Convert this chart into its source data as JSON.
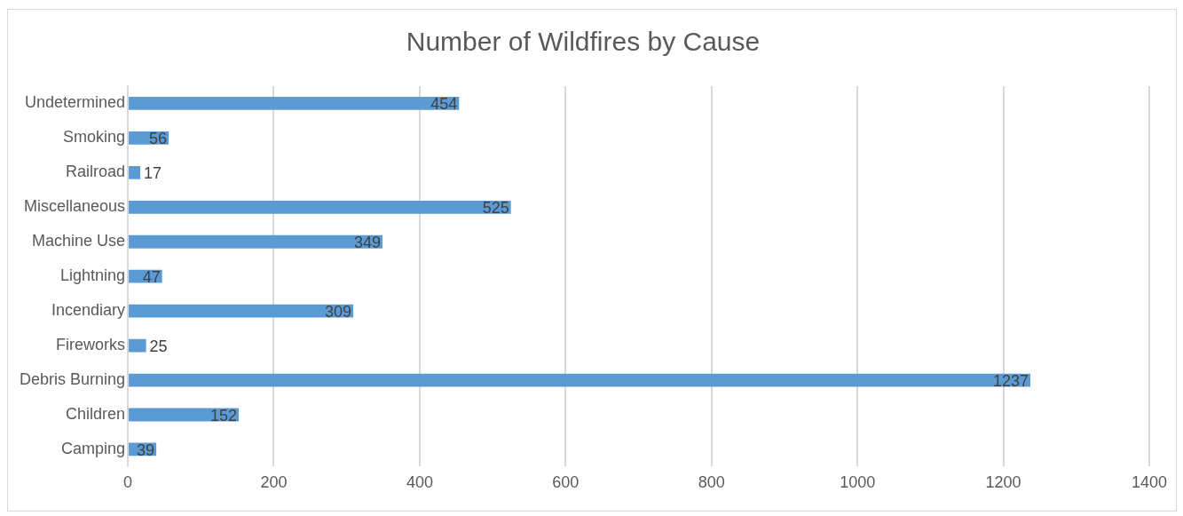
{
  "chart_data": {
    "type": "bar",
    "orientation": "horizontal",
    "title": "Number of Wildfires by Cause",
    "categories": [
      "Undetermined",
      "Smoking",
      "Railroad",
      "Miscellaneous",
      "Machine Use",
      "Lightning",
      "Incendiary",
      "Fireworks",
      "Debris Burning",
      "Children",
      "Camping"
    ],
    "values": [
      454,
      56,
      17,
      525,
      349,
      47,
      309,
      25,
      1237,
      152,
      39
    ],
    "color": "#5b9bd5",
    "data_labels": true,
    "grid": "x",
    "legend": false,
    "xlim": [
      0,
      1400
    ],
    "xticks": [
      0,
      200,
      400,
      600,
      800,
      1000,
      1200,
      1400
    ]
  }
}
